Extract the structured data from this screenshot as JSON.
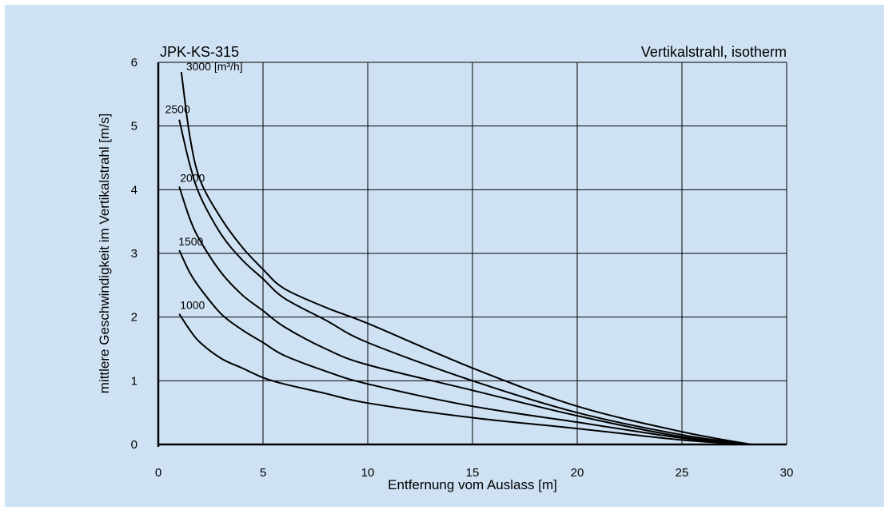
{
  "chart_data": {
    "type": "line",
    "title_left": "JPK-KS-315",
    "title_right": "Vertikalstrahl, isotherm",
    "xlabel": "Entfernung vom Auslass [m]",
    "ylabel": "mittlere Geschwindigkeit im Vertikalstrahl [m/s]",
    "xlim": [
      0,
      30
    ],
    "ylim": [
      0,
      6
    ],
    "x_ticks": [
      "0",
      "5",
      "10",
      "15",
      "20",
      "25",
      "30"
    ],
    "y_ticks": [
      "0",
      "1",
      "2",
      "3",
      "4",
      "5",
      "6"
    ],
    "grid": true,
    "series": [
      {
        "name": "3000 [m³/h]",
        "points": [
          [
            1.1,
            5.85
          ],
          [
            1.5,
            4.85
          ],
          [
            2,
            4.15
          ],
          [
            3,
            3.55
          ],
          [
            4,
            3.1
          ],
          [
            5,
            2.75
          ],
          [
            6,
            2.45
          ],
          [
            8,
            2.15
          ],
          [
            10,
            1.9
          ],
          [
            15,
            1.2
          ],
          [
            20,
            0.6
          ],
          [
            25,
            0.2
          ],
          [
            28.3,
            0
          ]
        ]
      },
      {
        "name": "2500",
        "points": [
          [
            1.0,
            5.1
          ],
          [
            1.5,
            4.4
          ],
          [
            2,
            3.9
          ],
          [
            3,
            3.3
          ],
          [
            4,
            2.9
          ],
          [
            5,
            2.6
          ],
          [
            6,
            2.3
          ],
          [
            8,
            1.95
          ],
          [
            10,
            1.6
          ],
          [
            15,
            1.0
          ],
          [
            20,
            0.5
          ],
          [
            25,
            0.15
          ],
          [
            28.3,
            0
          ]
        ]
      },
      {
        "name": "2000",
        "points": [
          [
            1.0,
            4.05
          ],
          [
            1.5,
            3.55
          ],
          [
            2,
            3.2
          ],
          [
            3,
            2.7
          ],
          [
            4,
            2.35
          ],
          [
            5,
            2.1
          ],
          [
            6,
            1.85
          ],
          [
            8,
            1.5
          ],
          [
            10,
            1.25
          ],
          [
            15,
            0.85
          ],
          [
            20,
            0.45
          ],
          [
            25,
            0.12
          ],
          [
            28.3,
            0
          ]
        ]
      },
      {
        "name": "1500",
        "points": [
          [
            1.0,
            3.05
          ],
          [
            1.5,
            2.7
          ],
          [
            2,
            2.45
          ],
          [
            3,
            2.05
          ],
          [
            4,
            1.8
          ],
          [
            5,
            1.6
          ],
          [
            6,
            1.4
          ],
          [
            8,
            1.15
          ],
          [
            10,
            0.95
          ],
          [
            15,
            0.6
          ],
          [
            20,
            0.35
          ],
          [
            25,
            0.1
          ],
          [
            28.3,
            0
          ]
        ]
      },
      {
        "name": "1000",
        "points": [
          [
            1.0,
            2.05
          ],
          [
            1.5,
            1.8
          ],
          [
            2,
            1.6
          ],
          [
            3,
            1.35
          ],
          [
            4,
            1.2
          ],
          [
            5,
            1.05
          ],
          [
            6,
            0.95
          ],
          [
            8,
            0.8
          ],
          [
            10,
            0.65
          ],
          [
            15,
            0.42
          ],
          [
            20,
            0.25
          ],
          [
            25,
            0.07
          ],
          [
            28.3,
            0
          ]
        ]
      }
    ]
  }
}
